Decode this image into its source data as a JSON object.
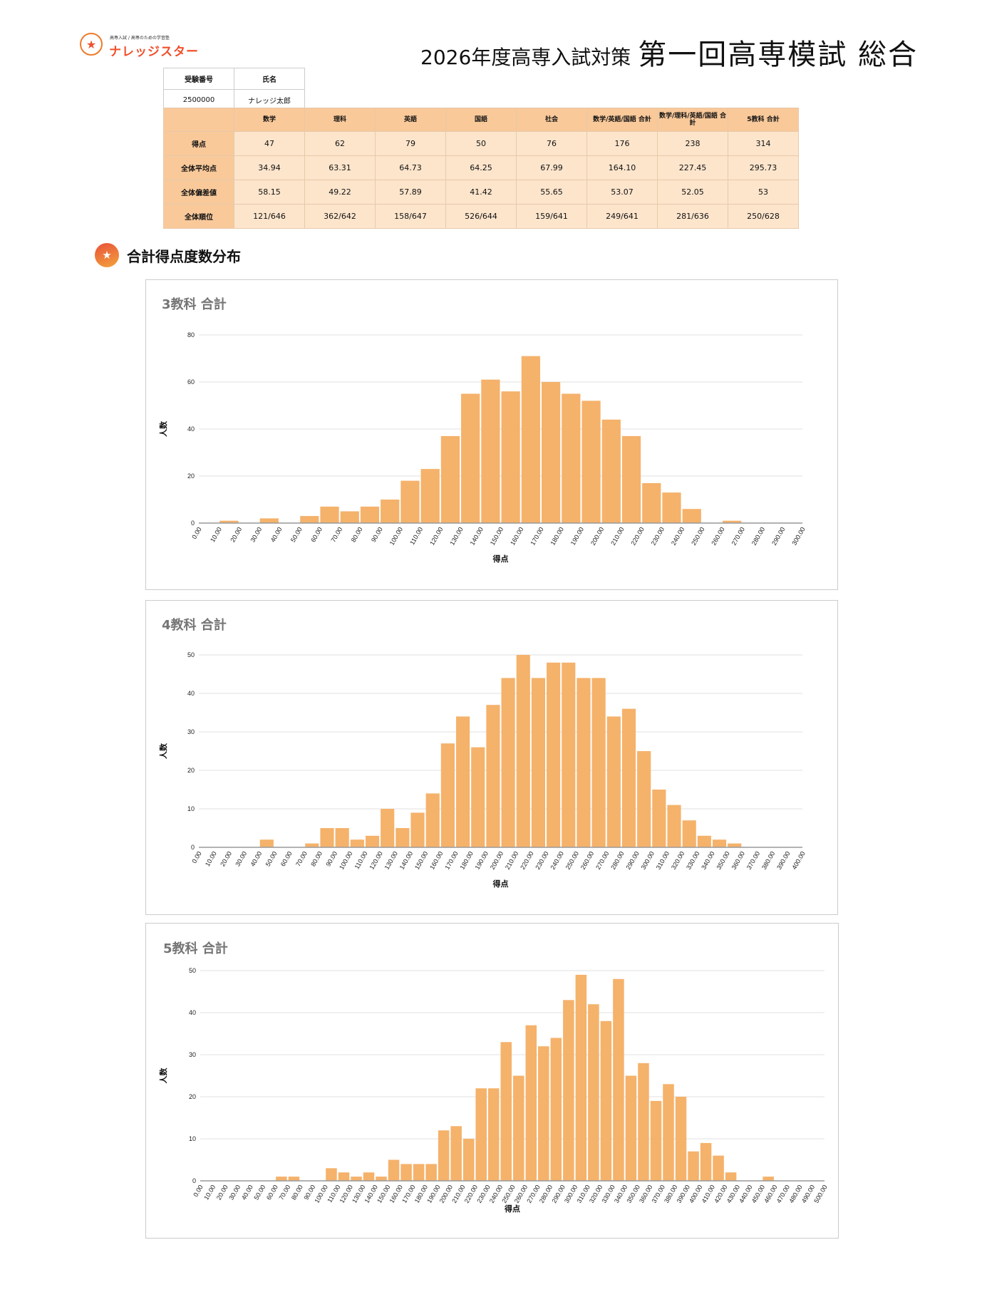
{
  "header": {
    "logo_tagline": "高専入試 / 高専のための学習塾",
    "logo_name": "ナレッジスター",
    "title_sub": "2026年度高専入試対策",
    "title_main": "第一回高専模試 総合"
  },
  "examinee": {
    "id_label": "受験番号",
    "name_label": "氏名",
    "id_value": "2500000",
    "name_value": "ナレッジ太郎"
  },
  "scores": {
    "columns": [
      "数学",
      "理科",
      "英語",
      "国語",
      "社会",
      "数学/英語/国語 合計",
      "数学/理科/英語/国語 合計",
      "5教科 合計"
    ],
    "rows": [
      {
        "label": "得点",
        "values": [
          "47",
          "62",
          "79",
          "50",
          "76",
          "176",
          "238",
          "314"
        ]
      },
      {
        "label": "全体平均点",
        "values": [
          "34.94",
          "63.31",
          "64.73",
          "64.25",
          "67.99",
          "164.10",
          "227.45",
          "295.73"
        ]
      },
      {
        "label": "全体偏差値",
        "values": [
          "58.15",
          "49.22",
          "57.89",
          "41.42",
          "55.65",
          "53.07",
          "52.05",
          "53"
        ]
      },
      {
        "label": "全体順位",
        "values": [
          "121/646",
          "362/642",
          "158/647",
          "526/644",
          "159/641",
          "249/641",
          "281/636",
          "250/628"
        ]
      }
    ]
  },
  "section": {
    "title": "合計得点度数分布",
    "icon": "star-icon"
  },
  "colors": {
    "bar": "#f5b26b",
    "header_cell": "#f9c99a",
    "cell": "#fde5cc",
    "accent": "#f0502c"
  },
  "chart_data": [
    {
      "type": "bar",
      "title": "3教科 合計",
      "xlabel": "得点",
      "ylabel": "人数",
      "bin_width": 10,
      "xlim": [
        0,
        300
      ],
      "ylim": [
        0,
        80
      ],
      "yticks": [
        0,
        20,
        40,
        60,
        80
      ],
      "grid": true,
      "values": [
        0,
        1,
        0,
        2,
        0,
        3,
        7,
        5,
        7,
        10,
        18,
        23,
        37,
        55,
        61,
        56,
        71,
        60,
        55,
        52,
        44,
        37,
        17,
        13,
        6,
        0,
        1,
        0,
        0,
        0
      ]
    },
    {
      "type": "bar",
      "title": "4教科 合計",
      "xlabel": "得点",
      "ylabel": "人数",
      "bin_width": 10,
      "xlim": [
        0,
        400
      ],
      "ylim": [
        0,
        50
      ],
      "yticks": [
        0,
        10,
        20,
        30,
        40,
        50
      ],
      "grid": true,
      "values": [
        0,
        0,
        0,
        0,
        2,
        0,
        0,
        1,
        5,
        5,
        2,
        3,
        10,
        5,
        9,
        14,
        27,
        34,
        26,
        37,
        44,
        50,
        44,
        48,
        48,
        44,
        44,
        34,
        36,
        25,
        15,
        11,
        7,
        3,
        2,
        1,
        0,
        0,
        0,
        0
      ]
    },
    {
      "type": "bar",
      "title": "5教科 合計",
      "xlabel": "得点",
      "ylabel": "人数",
      "bin_width": 10,
      "xlim": [
        0,
        500
      ],
      "ylim": [
        0,
        50
      ],
      "yticks": [
        0,
        10,
        20,
        30,
        40,
        50
      ],
      "grid": true,
      "values": [
        0,
        0,
        0,
        0,
        0,
        0,
        1,
        1,
        0,
        0,
        3,
        2,
        1,
        2,
        1,
        5,
        4,
        4,
        4,
        12,
        13,
        10,
        22,
        22,
        33,
        25,
        37,
        32,
        34,
        43,
        49,
        42,
        38,
        48,
        25,
        28,
        19,
        23,
        20,
        7,
        9,
        6,
        2,
        0,
        0,
        1,
        0,
        0,
        0,
        0
      ]
    }
  ]
}
